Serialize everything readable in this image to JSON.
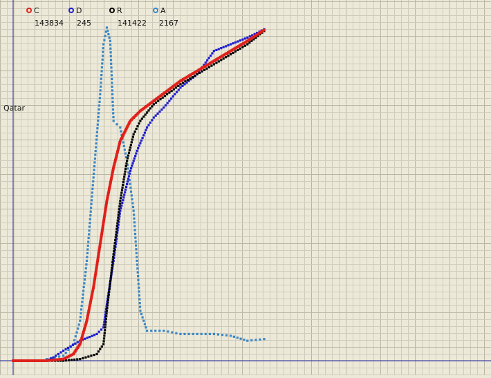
{
  "chart_data": {
    "type": "scatter",
    "title": "",
    "region_label": "Qatar",
    "xlim": [
      0,
      100
    ],
    "ylim": [
      0,
      100
    ],
    "grid": true,
    "legend": [
      {
        "key": "C",
        "count": "143834",
        "color": "#e0201b"
      },
      {
        "key": "D",
        "count": "245",
        "color": "#1c1cd0"
      },
      {
        "key": "R",
        "count": "141422",
        "color": "#000000"
      },
      {
        "key": "A",
        "count": "2167",
        "color": "#3a86c6"
      }
    ],
    "series": [
      {
        "name": "C",
        "color": "#e0201b",
        "points": [
          [
            0,
            0
          ],
          [
            10,
            0
          ],
          [
            15,
            0.5
          ],
          [
            18,
            2
          ],
          [
            20,
            5
          ],
          [
            22,
            12
          ],
          [
            24,
            22
          ],
          [
            26,
            35
          ],
          [
            28,
            48
          ],
          [
            30,
            58
          ],
          [
            32,
            66
          ],
          [
            35,
            72
          ],
          [
            38,
            75
          ],
          [
            42,
            78
          ],
          [
            46,
            81
          ],
          [
            50,
            84
          ],
          [
            55,
            87
          ],
          [
            60,
            90
          ],
          [
            65,
            93
          ],
          [
            70,
            96
          ],
          [
            75,
            99.3
          ]
        ]
      },
      {
        "name": "D",
        "color": "#1c1cd0",
        "points": [
          [
            0,
            0
          ],
          [
            10,
            0
          ],
          [
            12,
            1
          ],
          [
            15,
            3
          ],
          [
            20,
            6
          ],
          [
            25,
            8
          ],
          [
            27,
            10
          ],
          [
            28,
            17
          ],
          [
            30,
            30
          ],
          [
            32,
            45
          ],
          [
            35,
            57
          ],
          [
            37,
            63
          ],
          [
            40,
            70
          ],
          [
            42,
            73
          ],
          [
            45,
            76
          ],
          [
            50,
            82
          ],
          [
            55,
            86
          ],
          [
            60,
            93
          ],
          [
            65,
            95
          ],
          [
            70,
            97
          ],
          [
            75,
            99.5
          ]
        ]
      },
      {
        "name": "R",
        "color": "#000000",
        "points": [
          [
            0,
            0
          ],
          [
            15,
            0
          ],
          [
            20,
            0.5
          ],
          [
            25,
            2
          ],
          [
            27,
            5
          ],
          [
            28,
            15
          ],
          [
            30,
            32
          ],
          [
            32,
            48
          ],
          [
            34,
            60
          ],
          [
            36,
            68
          ],
          [
            38,
            72
          ],
          [
            42,
            77
          ],
          [
            46,
            80
          ],
          [
            50,
            83
          ],
          [
            55,
            86
          ],
          [
            60,
            89
          ],
          [
            65,
            92
          ],
          [
            70,
            95
          ],
          [
            75,
            99
          ]
        ]
      },
      {
        "name": "A",
        "color": "#3a86c6",
        "points": [
          [
            10,
            0.5
          ],
          [
            15,
            1.5
          ],
          [
            18,
            5
          ],
          [
            20,
            12
          ],
          [
            22,
            30
          ],
          [
            24,
            55
          ],
          [
            26,
            80
          ],
          [
            27,
            95
          ],
          [
            28,
            100
          ],
          [
            29,
            96
          ],
          [
            30,
            72
          ],
          [
            32,
            70
          ],
          [
            34,
            60
          ],
          [
            36,
            45
          ],
          [
            37,
            30
          ],
          [
            38,
            15
          ],
          [
            40,
            9
          ],
          [
            45,
            9
          ],
          [
            50,
            8
          ],
          [
            55,
            8
          ],
          [
            60,
            8
          ],
          [
            65,
            7.5
          ],
          [
            70,
            6
          ],
          [
            75,
            6.5
          ]
        ]
      }
    ]
  }
}
